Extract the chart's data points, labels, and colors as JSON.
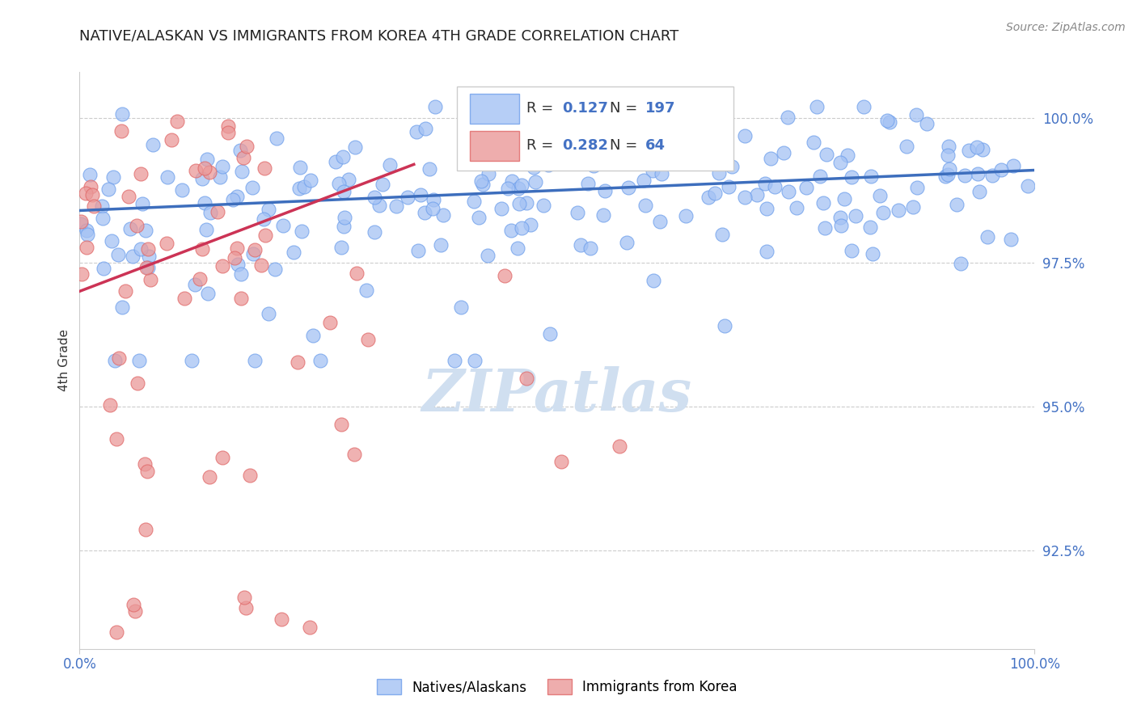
{
  "title": "NATIVE/ALASKAN VS IMMIGRANTS FROM KOREA 4TH GRADE CORRELATION CHART",
  "source_text": "Source: ZipAtlas.com",
  "ylabel": "4th Grade",
  "x_min": 0.0,
  "x_max": 1.0,
  "y_min": 0.908,
  "y_max": 1.008,
  "y_ticks": [
    0.925,
    0.95,
    0.975,
    1.0
  ],
  "y_tick_labels": [
    "92.5%",
    "95.0%",
    "97.5%",
    "100.0%"
  ],
  "blue_color": "#a4c2f4",
  "blue_edge_color": "#6d9eeb",
  "pink_color": "#ea9999",
  "pink_edge_color": "#e06666",
  "blue_line_color": "#3d6ebd",
  "pink_line_color": "#cc3355",
  "legend_text_color": "#4472c4",
  "background_color": "#ffffff",
  "grid_color": "#c0c0c0",
  "watermark_color": "#d0dff0",
  "blue_line_x0": 0.0,
  "blue_line_x1": 1.0,
  "blue_line_y0": 0.984,
  "blue_line_y1": 0.991,
  "pink_line_x0": 0.0,
  "pink_line_x1": 0.35,
  "pink_line_y0": 0.97,
  "pink_line_y1": 0.992
}
